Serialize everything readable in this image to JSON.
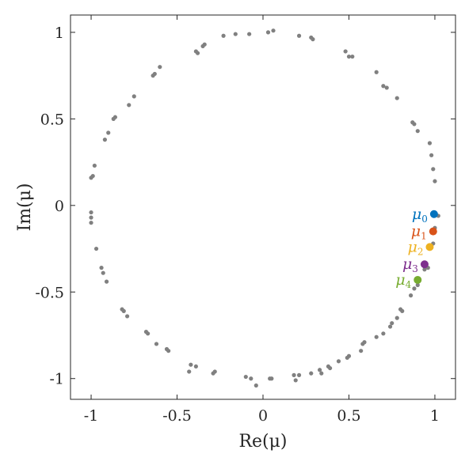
{
  "chart_data": {
    "type": "scatter",
    "xlabel": "Re(μ)",
    "ylabel": "Im(μ)",
    "xlim": [
      -1.12,
      1.12
    ],
    "ylim": [
      -1.12,
      1.1
    ],
    "x_ticks": [
      {
        "value": -1,
        "label": "-1"
      },
      {
        "value": -0.5,
        "label": "-0.5"
      },
      {
        "value": 0,
        "label": "0"
      },
      {
        "value": 0.5,
        "label": "0.5"
      },
      {
        "value": 1,
        "label": "1"
      }
    ],
    "y_ticks": [
      {
        "value": 1,
        "label": "1"
      },
      {
        "value": 0.5,
        "label": "0.5"
      },
      {
        "value": 0,
        "label": "0"
      },
      {
        "value": -0.5,
        "label": "-0.5"
      },
      {
        "value": -1,
        "label": "-1"
      }
    ],
    "grid": false,
    "gray_color": "#808080",
    "spectrum": [
      [
        0.06,
        1.01
      ],
      [
        0.03,
        1.0
      ],
      [
        -0.08,
        0.99
      ],
      [
        -0.16,
        0.99
      ],
      [
        -0.23,
        0.98
      ],
      [
        0.21,
        0.98
      ],
      [
        0.28,
        0.97
      ],
      [
        0.29,
        0.96
      ],
      [
        -0.34,
        0.93
      ],
      [
        -0.35,
        0.92
      ],
      [
        -0.39,
        0.89
      ],
      [
        -0.38,
        0.88
      ],
      [
        0.48,
        0.89
      ],
      [
        0.5,
        0.86
      ],
      [
        0.52,
        0.86
      ],
      [
        -0.6,
        0.8
      ],
      [
        -0.63,
        0.76
      ],
      [
        -0.64,
        0.75
      ],
      [
        0.66,
        0.77
      ],
      [
        0.7,
        0.69
      ],
      [
        0.72,
        0.68
      ],
      [
        -0.75,
        0.63
      ],
      [
        -0.78,
        0.58
      ],
      [
        0.78,
        0.62
      ],
      [
        -0.86,
        0.51
      ],
      [
        -0.87,
        0.5
      ],
      [
        -0.9,
        0.42
      ],
      [
        -0.92,
        0.38
      ],
      [
        0.87,
        0.48
      ],
      [
        0.88,
        0.47
      ],
      [
        0.9,
        0.43
      ],
      [
        0.97,
        0.36
      ],
      [
        0.98,
        0.29
      ],
      [
        0.99,
        0.21
      ],
      [
        1.0,
        0.14
      ],
      [
        -0.98,
        0.23
      ],
      [
        -0.99,
        0.17
      ],
      [
        -1.0,
        0.16
      ],
      [
        -1.0,
        -0.04
      ],
      [
        -1.0,
        -0.07
      ],
      [
        -1.0,
        -0.1
      ],
      [
        1.02,
        -0.06
      ],
      [
        -0.97,
        -0.25
      ],
      [
        1.0,
        -0.13
      ],
      [
        0.99,
        -0.22
      ],
      [
        -0.94,
        -0.36
      ],
      [
        -0.93,
        -0.39
      ],
      [
        -0.91,
        -0.44
      ],
      [
        0.96,
        -0.36
      ],
      [
        0.94,
        -0.37
      ],
      [
        0.9,
        -0.46
      ],
      [
        0.88,
        -0.48
      ],
      [
        0.86,
        -0.52
      ],
      [
        -0.82,
        -0.6
      ],
      [
        -0.81,
        -0.61
      ],
      [
        -0.79,
        -0.64
      ],
      [
        0.81,
        -0.61
      ],
      [
        0.8,
        -0.6
      ],
      [
        0.78,
        -0.65
      ],
      [
        -0.68,
        -0.73
      ],
      [
        -0.67,
        -0.74
      ],
      [
        -0.62,
        -0.8
      ],
      [
        0.75,
        -0.68
      ],
      [
        0.74,
        -0.7
      ],
      [
        0.7,
        -0.74
      ],
      [
        0.66,
        -0.76
      ],
      [
        -0.55,
        -0.84
      ],
      [
        -0.56,
        -0.83
      ],
      [
        0.58,
        -0.8
      ],
      [
        0.59,
        -0.79
      ],
      [
        0.57,
        -0.84
      ],
      [
        -0.42,
        -0.92
      ],
      [
        -0.39,
        -0.93
      ],
      [
        -0.43,
        -0.96
      ],
      [
        0.5,
        -0.87
      ],
      [
        0.49,
        -0.88
      ],
      [
        0.44,
        -0.9
      ],
      [
        -0.28,
        -0.96
      ],
      [
        -0.29,
        -0.97
      ],
      [
        0.38,
        -0.93
      ],
      [
        0.39,
        -0.94
      ],
      [
        0.33,
        -0.95
      ],
      [
        0.34,
        -0.97
      ],
      [
        0.28,
        -0.97
      ],
      [
        -0.1,
        -0.99
      ],
      [
        -0.07,
        -1.0
      ],
      [
        -0.04,
        -1.04
      ],
      [
        0.04,
        -1.0
      ],
      [
        0.05,
        -1.0
      ],
      [
        0.18,
        -0.98
      ],
      [
        0.21,
        -0.98
      ],
      [
        0.19,
        -1.01
      ]
    ],
    "series": [
      {
        "name": "μ",
        "sub": "0",
        "color": "#0072BD",
        "x": 0.995,
        "y": -0.05
      },
      {
        "name": "μ",
        "sub": "1",
        "color": "#D95319",
        "x": 0.99,
        "y": -0.15
      },
      {
        "name": "μ",
        "sub": "2",
        "color": "#EDB120",
        "x": 0.97,
        "y": -0.24
      },
      {
        "name": "μ",
        "sub": "3",
        "color": "#7E2F8E",
        "x": 0.94,
        "y": -0.34
      },
      {
        "name": "μ",
        "sub": "4",
        "color": "#77AC30",
        "x": 0.9,
        "y": -0.43
      }
    ]
  }
}
